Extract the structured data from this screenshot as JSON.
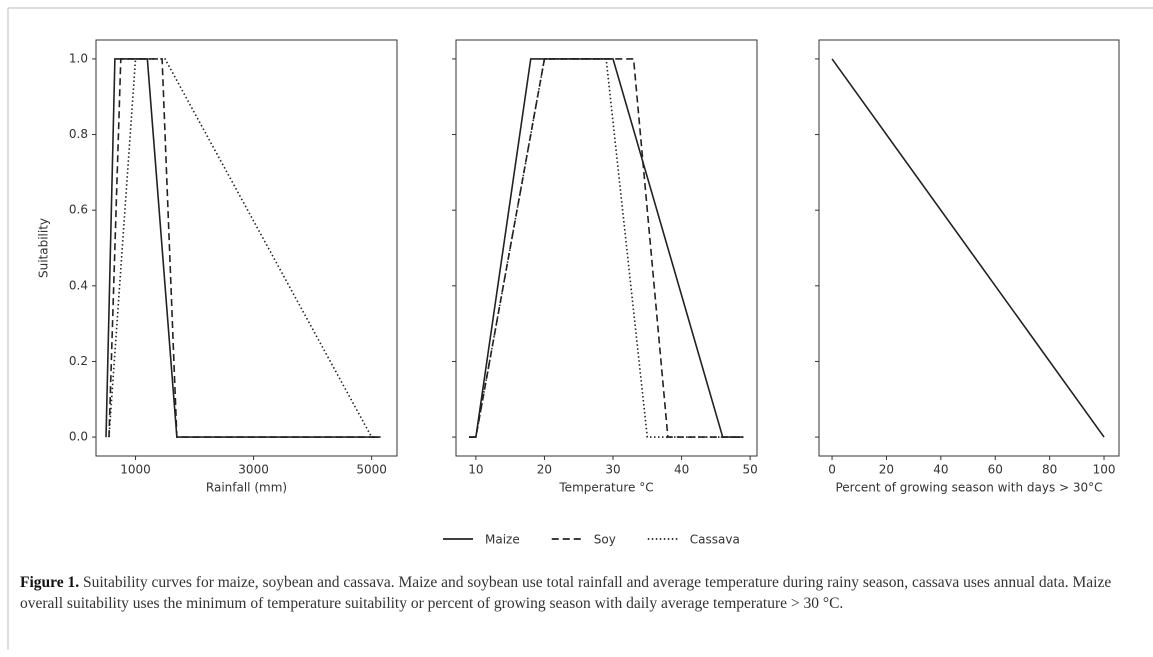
{
  "chart_data": [
    {
      "type": "line",
      "xlabel": "Rainfall (mm)",
      "ylabel": "Suitability",
      "xlim": [
        330,
        5430
      ],
      "xticks": [
        1000,
        3000,
        5000
      ],
      "ylim": [
        -0.05,
        1.05
      ],
      "yticks": [
        {
          "value": 0,
          "label": "0.0"
        },
        {
          "value": 0.2,
          "label": "0.2"
        },
        {
          "value": 0.4,
          "label": "0.4"
        },
        {
          "value": 0.6,
          "label": "0.6"
        },
        {
          "value": 0.8,
          "label": "0.8"
        },
        {
          "value": 1,
          "label": "1.0"
        }
      ],
      "series": [
        {
          "name": "Maize",
          "color": "#222222",
          "style": "solid",
          "x": [
            500,
            650,
            1200,
            1700,
            5150
          ],
          "values": [
            0,
            1,
            1,
            0,
            0
          ]
        },
        {
          "name": "Soy",
          "color": "#222222",
          "style": "dashed",
          "x": [
            550,
            750,
            1450,
            1700,
            5150
          ],
          "values": [
            0,
            1,
            1,
            0,
            0
          ]
        },
        {
          "name": "Cassava",
          "color": "#222222",
          "style": "dotted",
          "x": [
            550,
            1000,
            1500,
            5000,
            5150
          ],
          "values": [
            0,
            1,
            1,
            0,
            0
          ]
        }
      ]
    },
    {
      "type": "line",
      "xlabel": "Temperature °C",
      "xlim": [
        7.1,
        51.0
      ],
      "xticks": [
        10,
        20,
        30,
        40,
        50
      ],
      "ylim": [
        -0.05,
        1.05
      ],
      "series": [
        {
          "color": "#222222",
          "style": "solid",
          "x": [
            9,
            10,
            18,
            30,
            46,
            49
          ],
          "values": [
            0,
            0,
            1,
            1,
            0,
            0
          ]
        },
        {
          "color": "#222222",
          "style": "dashed",
          "x": [
            9,
            10,
            20,
            33,
            38,
            49
          ],
          "values": [
            0,
            0,
            1,
            1,
            0,
            0
          ]
        },
        {
          "color": "#222222",
          "style": "dotted",
          "x": [
            9,
            10,
            20,
            29,
            35,
            49
          ],
          "values": [
            0,
            0,
            1,
            1,
            0,
            0
          ]
        }
      ]
    },
    {
      "type": "line",
      "xlabel": "Percent of growing season with days > 30°C",
      "xlim": [
        -4.8,
        105.5
      ],
      "xticks": [
        0,
        20,
        40,
        60,
        80,
        100
      ],
      "ylim": [
        -0.05,
        1.05
      ],
      "series": [
        {
          "color": "#222222",
          "style": "solid",
          "x": [
            0,
            100
          ],
          "values": [
            1,
            0
          ]
        }
      ]
    }
  ],
  "caption": {
    "label": "Figure 1.",
    "text": "Suitability curves for maize, soybean and cassava. Maize and soybean use total rainfall and average temperature during rainy season, cassava uses annual data. Maize overall suitability uses the minimum of temperature suitability or percent of growing season with daily average temperature > 30 °C."
  }
}
